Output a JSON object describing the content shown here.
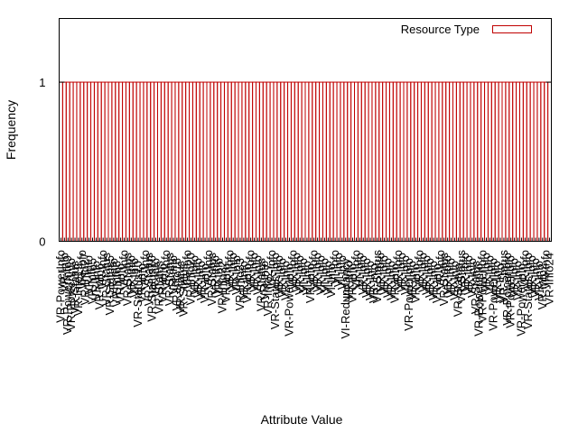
{
  "chart_data": {
    "type": "bar",
    "title": "",
    "xlabel": "Attribute Value",
    "ylabel": "Frequency",
    "ylim": [
      0,
      1.4
    ],
    "yticks": [
      0,
      1
    ],
    "grid": false,
    "legend_position": "top-right",
    "series": [
      {
        "name": "Resource Type",
        "color": "#c00000",
        "values": [
          1,
          1,
          1,
          1,
          1,
          1,
          1,
          1,
          1,
          1,
          1,
          1,
          1,
          1,
          1,
          1,
          1,
          1,
          1,
          1,
          1,
          1,
          1,
          1,
          1,
          1,
          1,
          1,
          1,
          1,
          1,
          1,
          1,
          1,
          1,
          1,
          1,
          1,
          1,
          1,
          1,
          1,
          1,
          1,
          1,
          1,
          1,
          1,
          1,
          1,
          1,
          1,
          1,
          1,
          1,
          1,
          1,
          1,
          1,
          1,
          1,
          1,
          1,
          1,
          1,
          1,
          1,
          1,
          1,
          1,
          1,
          1,
          1,
          1,
          1,
          1,
          1,
          1,
          1,
          1,
          1,
          1,
          1,
          1,
          1,
          1,
          1,
          1,
          1,
          1,
          1,
          1,
          1,
          1,
          1,
          1,
          1,
          1,
          1,
          1,
          1,
          1,
          1,
          1,
          1,
          1,
          1,
          1,
          1,
          1,
          1,
          1,
          1,
          1,
          1,
          1,
          1,
          1,
          1,
          1,
          1,
          1,
          1,
          1,
          1,
          1,
          1,
          1,
          1,
          1,
          1,
          1,
          1,
          1,
          1,
          1,
          1,
          1,
          1,
          1
        ]
      }
    ],
    "categories": [
      "VR-PowerInfo",
      "VR-Info",
      "VR-PowerInfo9",
      "VR-PowerInfo",
      "VR-Status",
      "VR-Info19",
      "VR-Info",
      "VR-Info27",
      "VR-Info",
      "VR-Info5",
      "VR-Info",
      "VR-Info6",
      "VR-Info",
      "VR-Status",
      "VR-Status5",
      "VR-Info",
      "VR-Info8",
      "VR-Info",
      "VR-Info",
      "VR-Status",
      "VR-Info",
      "VR-Info",
      "VR-Status10",
      "VR-Info",
      "VR-Info",
      "VR-Status",
      "VR-Status10",
      "VR-Info",
      "VR-Status",
      "VR-Info",
      "VR-Info",
      "VR-Status",
      "VR-Info",
      "VR-Info18",
      "VR-Status",
      "VR-Status",
      "VR-Info",
      "VR-Info20",
      "VR-Info",
      "VR-Info",
      "VR-Info",
      "VR-Info",
      "VR-Info",
      "VR-Status",
      "VR-Info",
      "VR-Info",
      "VR-Info32",
      "VR-Info",
      "VR-Info",
      "VR-Info",
      "VR-Info",
      "VR-Info33",
      "VR-Info",
      "VR-Info",
      "VR-Info",
      "VR-Info",
      "VR-Info",
      "VR-Status",
      "VR-Info",
      "VR-Info27",
      "VR-Info",
      "VR-Status-Info",
      "VR-Info",
      "VR-Info",
      "VR-Info",
      "VR-PowerInfo",
      "VR-Info",
      "VR-Info",
      "VR-Info",
      "VI-Info",
      "VI-Info",
      "VR-Info",
      "VR-Info",
      "VR-Info",
      "VR-Info",
      "VI-Info",
      "VI-Info",
      "VI-Info",
      "VI-Info",
      "VI-Info",
      "VI-Info",
      "VI-Redundancy",
      "VR-Info",
      "VR-Info",
      "VR-Info",
      "VI-Info",
      "VR-Info",
      "VR-Info",
      "VR-Info",
      "VR-Info",
      "VR-Status",
      "VR-Info",
      "VR-Info",
      "VR-Info",
      "VR-Info",
      "VR-Info",
      "VR-Info",
      "VR-Info",
      "VR-Info",
      "VR-PowerInfo",
      "VR-Info",
      "VR-Info",
      "VR-Info",
      "VR-Info",
      "VR-Info",
      "VR-Info",
      "VR-Info",
      "VR-Info",
      "VR-Info",
      "VR-Status",
      "VR-Info",
      "VR-Info",
      "VR-Info",
      "VR-Status",
      "VR-Status",
      "VR-Info",
      "VR-Info",
      "VR-Info",
      "VR-Status",
      "VR-PowerInfo",
      "VR-PowerInfo",
      "VR-Info",
      "VR-Info",
      "VR-PowerInfo",
      "VR-Info",
      "VR-Info",
      "VR-Status",
      "VR-PowerInfo",
      "VR-PowerInfo",
      "VR-Info",
      "VR-Info",
      "VR-PowerInfo",
      "VR-Info",
      "VR-Status-Info",
      "VR-Info",
      "VR-Info",
      "VR-Info",
      "VR-Info2",
      "VR-Info",
      "VR-Info24"
    ]
  }
}
